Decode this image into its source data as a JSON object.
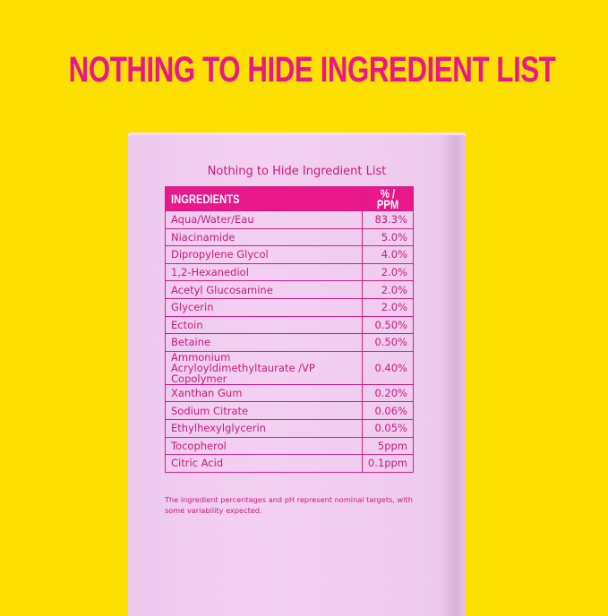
{
  "headline": "NOTHING TO HIDE INGREDIENT LIST",
  "box": {
    "title": "Nothing to Hide Ingredient List",
    "columns": [
      "INGREDIENTS",
      "% / PPM"
    ],
    "rows": [
      {
        "name": "Aqua/Water/Eau",
        "value": "83.3%"
      },
      {
        "name": "Niacinamide",
        "value": "5.0%"
      },
      {
        "name": "Dipropylene Glycol",
        "value": "4.0%"
      },
      {
        "name": "1,2-Hexanediol",
        "value": "2.0%"
      },
      {
        "name": "Acetyl Glucosamine",
        "value": "2.0%"
      },
      {
        "name": "Glycerin",
        "value": "2.0%"
      },
      {
        "name": "Ectoin",
        "value": "0.50%"
      },
      {
        "name": "Betaine",
        "value": "0.50%"
      },
      {
        "name": "Ammonium Acryloyldimethyltaurate /VP Copolymer",
        "value": "0.40%"
      },
      {
        "name": "Xanthan Gum",
        "value": "0.20%"
      },
      {
        "name": "Sodium Citrate",
        "value": "0.06%"
      },
      {
        "name": "Ethylhexylglycerin",
        "value": "0.05%"
      },
      {
        "name": "Tocopherol",
        "value": "5ppm"
      },
      {
        "name": "Citric Acid",
        "value": "0.1ppm"
      }
    ],
    "footnote": "The ingredient percentages and pH represent nominal targets, with some variability expected."
  },
  "colors": {
    "background": "#fde000",
    "accent": "#e8178a",
    "box": "#f0cdf0"
  }
}
